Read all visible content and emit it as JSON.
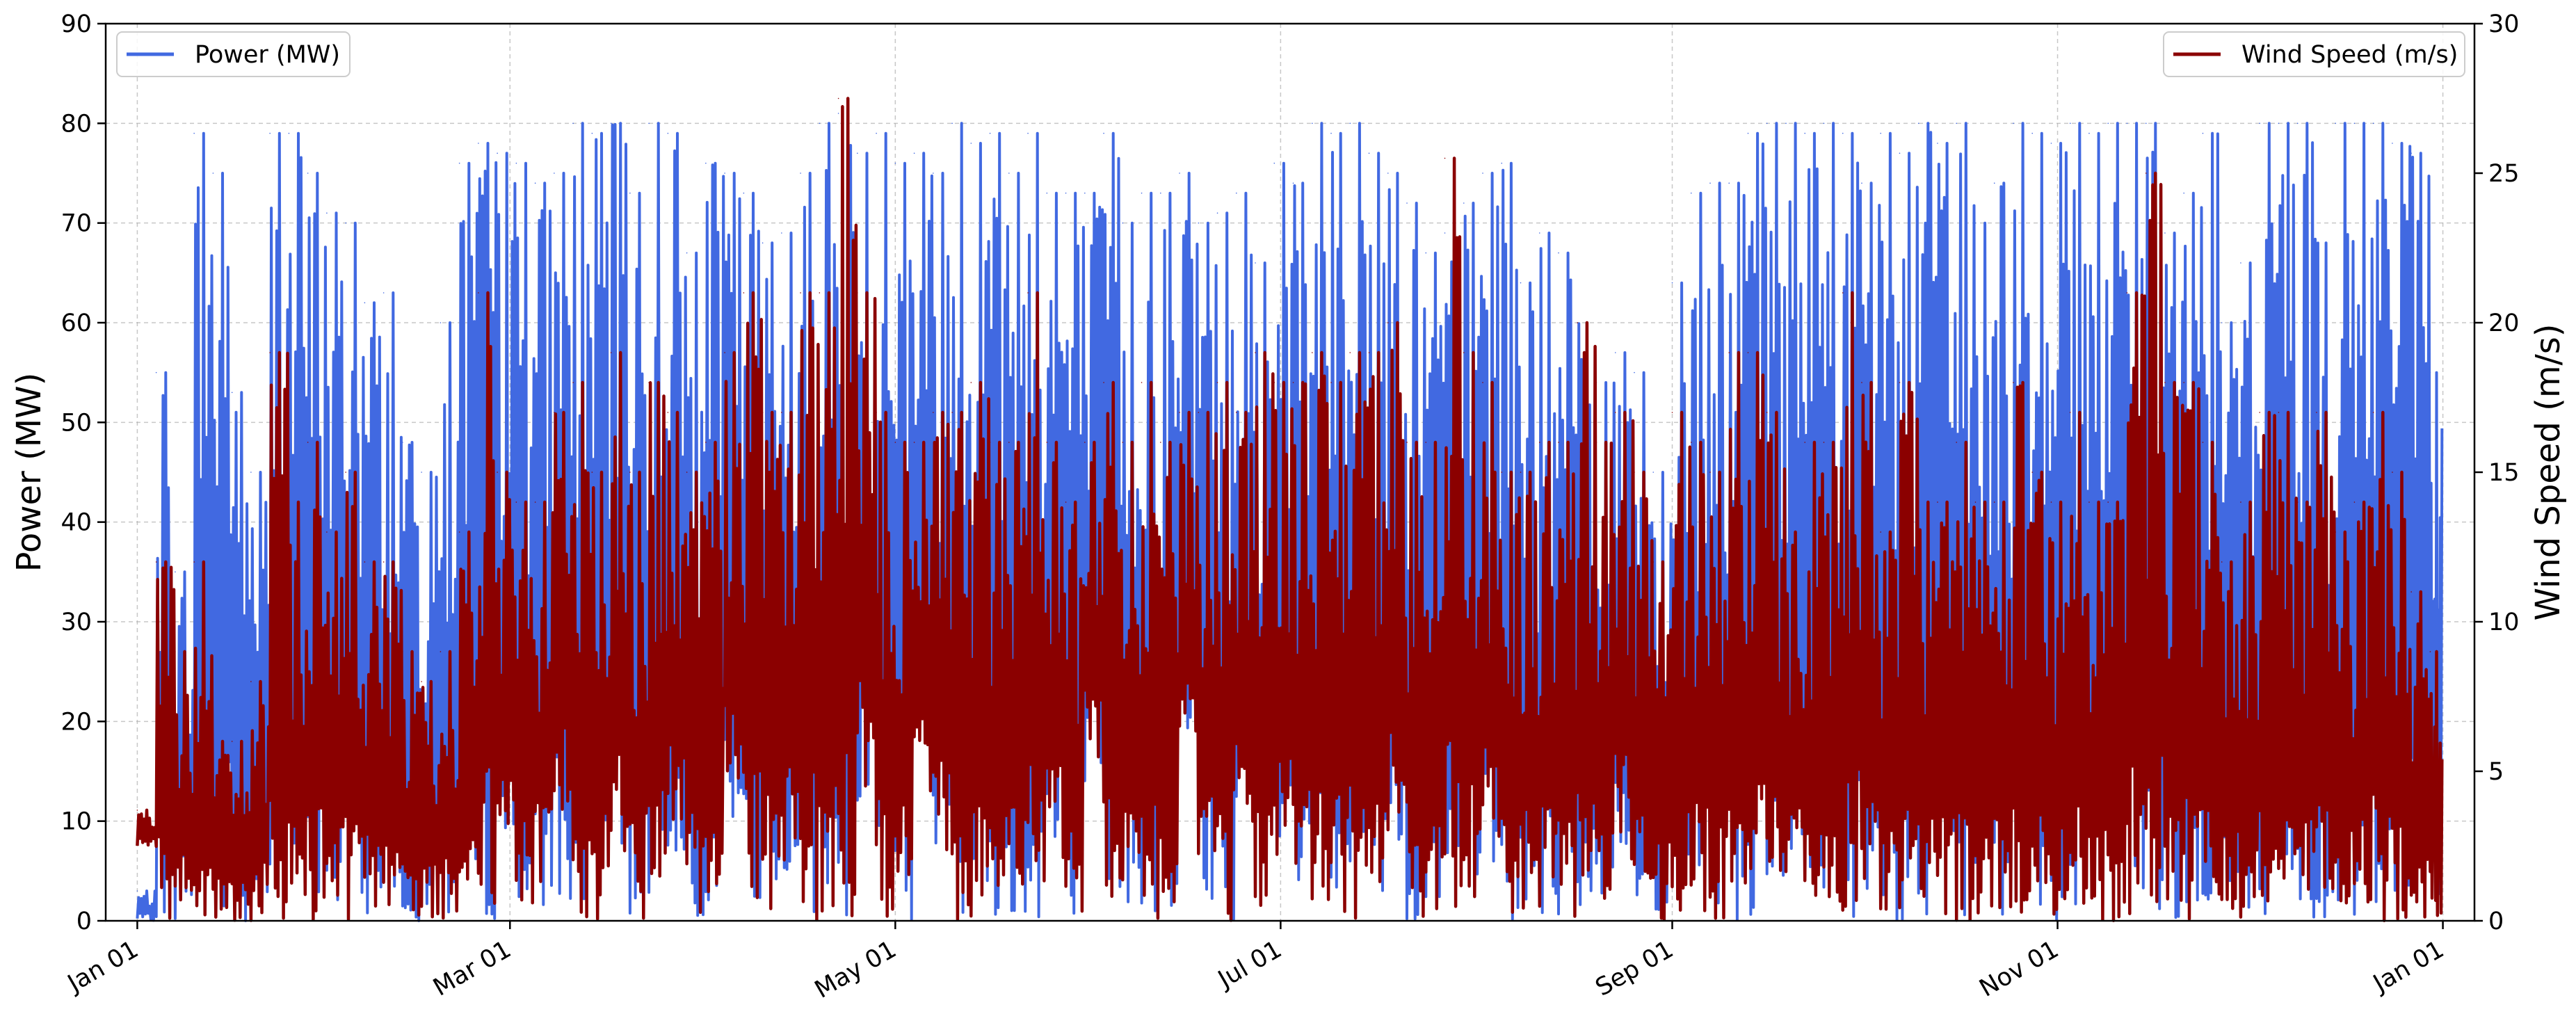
{
  "chart_data": {
    "type": "line",
    "title": "",
    "xlabel": "",
    "ylabel_left": "Power (MW)",
    "ylabel_right": "Wind Speed (m/s)",
    "ylim_left": [
      0,
      90
    ],
    "ylim_right": [
      0,
      30
    ],
    "yticks_left": [
      "0",
      "10",
      "20",
      "30",
      "40",
      "50",
      "60",
      "70",
      "80",
      "90"
    ],
    "yticks_right": [
      "0",
      "5",
      "10",
      "15",
      "20",
      "25",
      "30"
    ],
    "x_axis": {
      "start": "Jan 01",
      "end": "Jan 01",
      "tick_labels": [
        "Jan 01",
        "Mar 01",
        "May 01",
        "Jul 01",
        "Sep 01",
        "Nov 01",
        "Jan 01"
      ],
      "tick_days": [
        0,
        59,
        120,
        181,
        243,
        304,
        365
      ],
      "span_days": 365,
      "xlim_days": [
        -5,
        370
      ]
    },
    "grid": true,
    "legends": [
      {
        "position": "top-left",
        "entries": [
          "Power (MW)"
        ]
      },
      {
        "position": "top-right",
        "entries": [
          "Wind Speed (m/s)"
        ]
      }
    ],
    "series": [
      {
        "name": "Power (MW)",
        "axis": "left",
        "color": "#4169e1",
        "x_days": [
          0,
          3,
          6,
          9,
          12,
          15,
          18,
          21,
          24,
          27,
          30,
          33,
          36,
          39,
          42,
          45,
          48,
          51,
          54,
          57,
          60,
          63,
          66,
          69,
          72,
          75,
          78,
          81,
          84,
          87,
          90,
          93,
          96,
          99,
          102,
          105,
          108,
          111,
          114,
          117,
          120,
          123,
          126,
          129,
          132,
          135,
          138,
          141,
          144,
          147,
          150,
          153,
          156,
          159,
          162,
          165,
          168,
          171,
          174,
          177,
          180,
          183,
          186,
          189,
          192,
          195,
          198,
          201,
          204,
          207,
          210,
          213,
          216,
          219,
          222,
          225,
          228,
          231,
          234,
          237,
          240,
          243,
          246,
          249,
          252,
          255,
          258,
          261,
          264,
          267,
          270,
          273,
          276,
          279,
          282,
          285,
          288,
          291,
          294,
          297,
          300,
          303,
          306,
          309,
          312,
          315,
          318,
          321,
          324,
          327,
          330,
          333,
          336,
          339,
          342,
          345,
          348,
          351,
          354,
          357,
          360,
          363
        ],
        "values": [
          3,
          55,
          35,
          79,
          75,
          53,
          45,
          79,
          79,
          75,
          71,
          70,
          62,
          63,
          48,
          45,
          60,
          76,
          78,
          77,
          76,
          74,
          75,
          80,
          79,
          80,
          73,
          80,
          79,
          67,
          76,
          75,
          73,
          68,
          69,
          75,
          80,
          81,
          77,
          79,
          76,
          77,
          75,
          80,
          78,
          79,
          75,
          79,
          73,
          73,
          73,
          79,
          70,
          73,
          73,
          75,
          70,
          71,
          73,
          66,
          76,
          74,
          80,
          79,
          80,
          77,
          75,
          72,
          67,
          69,
          72,
          75,
          76,
          64,
          69,
          67,
          60,
          54,
          57,
          55,
          45,
          64,
          73,
          74,
          74,
          79,
          80,
          80,
          79,
          80,
          79,
          74,
          79,
          77,
          80,
          78,
          80,
          70,
          74,
          80,
          79,
          78,
          80,
          79,
          80,
          80,
          80,
          69,
          73,
          79,
          60,
          66,
          80,
          80,
          80,
          68,
          80,
          80,
          80,
          78,
          77,
          55
        ],
        "mins": [
          0,
          0,
          0,
          0,
          0,
          0,
          1,
          0,
          0,
          2,
          0,
          0,
          0,
          0,
          0,
          0,
          0,
          0,
          0,
          3,
          0,
          0,
          2,
          0,
          0,
          4,
          0,
          0,
          6,
          0,
          0,
          8,
          0,
          0,
          5,
          0,
          0,
          0,
          10,
          0,
          0,
          12,
          5,
          0,
          0,
          0,
          0,
          0,
          6,
          0,
          14,
          0,
          0,
          0,
          0,
          15,
          0,
          0,
          10,
          0,
          4,
          0,
          0,
          0,
          0,
          0,
          6,
          0,
          0,
          0,
          0,
          5,
          0,
          0,
          0,
          0,
          0,
          0,
          5,
          0,
          0,
          0,
          0,
          0,
          0,
          0,
          0,
          3,
          0,
          0,
          0,
          0,
          0,
          0,
          0,
          0,
          0,
          0,
          0,
          0,
          0,
          0,
          0,
          0,
          0,
          0,
          0,
          0,
          0,
          0,
          0,
          0,
          0,
          0,
          0,
          0,
          0,
          0,
          0,
          0,
          0,
          0
        ]
      },
      {
        "name": "Wind Speed (m/s)",
        "axis": "right",
        "color": "#8b0000",
        "x_days": [
          0,
          3,
          6,
          9,
          12,
          15,
          18,
          21,
          24,
          27,
          30,
          33,
          36,
          39,
          42,
          45,
          48,
          51,
          54,
          57,
          60,
          63,
          66,
          69,
          72,
          75,
          78,
          81,
          84,
          87,
          90,
          93,
          96,
          99,
          102,
          105,
          108,
          111,
          114,
          117,
          120,
          123,
          126,
          129,
          132,
          135,
          138,
          141,
          144,
          147,
          150,
          153,
          156,
          159,
          162,
          165,
          168,
          171,
          174,
          177,
          180,
          183,
          186,
          189,
          192,
          195,
          198,
          201,
          204,
          207,
          210,
          213,
          216,
          219,
          222,
          225,
          228,
          231,
          234,
          237,
          240,
          243,
          246,
          249,
          252,
          255,
          258,
          261,
          264,
          267,
          270,
          273,
          276,
          279,
          282,
          285,
          288,
          291,
          294,
          297,
          300,
          303,
          306,
          309,
          312,
          315,
          318,
          321,
          324,
          327,
          330,
          333,
          336,
          339,
          342,
          345,
          348,
          351,
          354,
          357,
          360,
          363
        ],
        "values": [
          3.7,
          12,
          9,
          12,
          6,
          6,
          8,
          19,
          14,
          16,
          13,
          15,
          12,
          12,
          9,
          8,
          9,
          13,
          21,
          15,
          14,
          14,
          17,
          18,
          15,
          19,
          15,
          18,
          17,
          15,
          16,
          19,
          21,
          17,
          17,
          21,
          21,
          27.5,
          21,
          17,
          16,
          16,
          17,
          17,
          18,
          16,
          16,
          21,
          16,
          14,
          16,
          18,
          16,
          18,
          16,
          17,
          17,
          18,
          17,
          19,
          18,
          18,
          19,
          18,
          19,
          19,
          20,
          16,
          16,
          25.5,
          19,
          18,
          15,
          15,
          16,
          16,
          20,
          16,
          17,
          15,
          12,
          17,
          16,
          15,
          19,
          19,
          17,
          13,
          16,
          16,
          21,
          18,
          13,
          18,
          14,
          14,
          16,
          14,
          14,
          18,
          15,
          14,
          17,
          14,
          14,
          21,
          25,
          18,
          18,
          16,
          12,
          14,
          17,
          17,
          14,
          17,
          13,
          14,
          17,
          15,
          11,
          9
        ],
        "mins": [
          2.5,
          0,
          0,
          0,
          0,
          0,
          0,
          0,
          0,
          0,
          0,
          0,
          0,
          0,
          0,
          0,
          0,
          1,
          0,
          2,
          0,
          1,
          3,
          0,
          0,
          2,
          0,
          0,
          3,
          0,
          0,
          4,
          0,
          0,
          2,
          0,
          0,
          0,
          4,
          0,
          0,
          4,
          2,
          0,
          0,
          0,
          0,
          0,
          2,
          0,
          5,
          0,
          0,
          0,
          0,
          5,
          0,
          0,
          3,
          0,
          2,
          0,
          0,
          0,
          0,
          0,
          2,
          0,
          0,
          0,
          0,
          2,
          0,
          0,
          0,
          0,
          0,
          0,
          2,
          0,
          0,
          0,
          0,
          0,
          0,
          0,
          0,
          1,
          0,
          0,
          0,
          0,
          0,
          0,
          0,
          0,
          0,
          0,
          0,
          0,
          0,
          0,
          0,
          0,
          0,
          0,
          0,
          0,
          0,
          0,
          0,
          0,
          0,
          0,
          0,
          0,
          0,
          0,
          0,
          0,
          0,
          0
        ]
      }
    ]
  }
}
